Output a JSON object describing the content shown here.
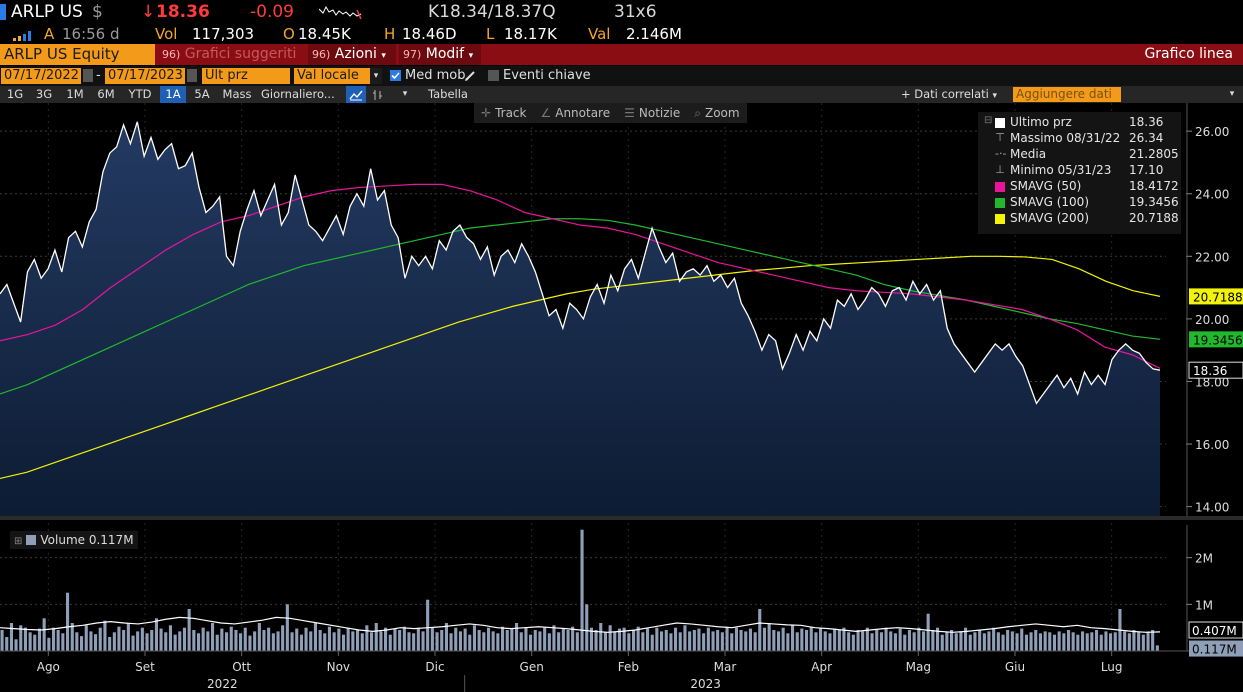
{
  "quote": {
    "ticker": "ARLP US",
    "currency_icon": "$",
    "direction_icon": "↓",
    "price": "18.36",
    "change": "-0.09",
    "bid_ask": "K18.34/18.37Q",
    "size": "31x6",
    "signal_icon": "signal-bars",
    "time_label": "A",
    "time": "16:56 d",
    "vol_label": "Vol",
    "vol": "117,303",
    "open_label": "O",
    "open": "18.45K",
    "high_label": "H",
    "high": "18.46D",
    "low_label": "L",
    "low": "18.17K",
    "val_label": "Val",
    "val": "2.146M"
  },
  "titlebar": {
    "security": "ARLP US Equity",
    "suggested_num": "96)",
    "suggested": "Grafici suggeriti",
    "actions_num": "96)",
    "actions": "Azioni",
    "modify_num": "97)",
    "modify": "Modif",
    "chart_type": "Grafico linea"
  },
  "params": {
    "start_date": "07/17/2022",
    "separator": "-",
    "end_date": "07/17/2023",
    "field": "Ult prz",
    "currency": "Val locale",
    "moving_avg": "Med mob",
    "moving_avg_checked": true,
    "key_events": "Eventi chiave",
    "key_events_checked": false
  },
  "periods": {
    "buttons": [
      "1G",
      "3G",
      "1M",
      "6M",
      "YTD",
      "1A",
      "5A",
      "Mass",
      "Giornaliero"
    ],
    "selected": "1A",
    "table": "Tabella",
    "related": "+ Dati correlati",
    "add_data": "Aggiungere dati"
  },
  "tools": [
    "Track",
    "Annotare",
    "Notizie",
    "Zoom"
  ],
  "legend": [
    {
      "name": "Ultimo prz",
      "value": "18.36",
      "color": "#ffffff",
      "marker": "square"
    },
    {
      "name": "Massimo 08/31/22",
      "value": "26.34",
      "color": "#aaaaaa",
      "marker": "high"
    },
    {
      "name": "Media",
      "value": "21.2805",
      "color": "#aaaaaa",
      "marker": "avg"
    },
    {
      "name": "Minimo 05/31/23",
      "value": "17.10",
      "color": "#aaaaaa",
      "marker": "low"
    },
    {
      "name": "SMAVG (50)",
      "value": "18.4172",
      "color": "#e8149b",
      "marker": "square"
    },
    {
      "name": "SMAVG (100)",
      "value": "19.3456",
      "color": "#22b82e",
      "marker": "square"
    },
    {
      "name": "SMAVG (200)",
      "value": "20.7188",
      "color": "#f2f20a",
      "marker": "square"
    }
  ],
  "volume_legend": "Volume 0.117M",
  "chart_data": {
    "type": "line",
    "price_axis": {
      "ylim": [
        13.7,
        26.9
      ],
      "ticks": [
        "26.00",
        "24.00",
        "22.00",
        "20.00",
        "18.00",
        "16.00",
        "14.00"
      ]
    },
    "volume_axis": {
      "ylim": [
        0,
        2.7
      ],
      "ticks": [
        "2M",
        "1M"
      ]
    },
    "x_labels": [
      "Ago",
      "Set",
      "Ott",
      "Nov",
      "Dic",
      "Gen",
      "Feb",
      "Mar",
      "Apr",
      "Mag",
      "Giu",
      "Lug"
    ],
    "years": [
      "2022",
      "2023"
    ],
    "last_labels": [
      {
        "text": "20.7188",
        "value": 20.7188,
        "color": "#f2f20a"
      },
      {
        "text": "19.3456",
        "value": 19.3456,
        "color": "#22b82e"
      },
      {
        "text": "18.36",
        "value": 18.36,
        "color": "#ffffff"
      }
    ],
    "volume_labels": [
      {
        "text": "0.407M",
        "value": 0.407
      },
      {
        "text": "0.117M",
        "value": 0.117
      }
    ],
    "series": [
      {
        "name": "Ultimo prz",
        "color": "#ffffff",
        "values": [
          20.8,
          21.1,
          20.5,
          19.9,
          21.5,
          21.9,
          21.3,
          21.6,
          22.2,
          21.5,
          22.6,
          22.8,
          22.3,
          23.1,
          23.5,
          24.7,
          25.3,
          25.5,
          26.2,
          25.6,
          26.3,
          25.2,
          25.8,
          25.1,
          25.4,
          25.6,
          24.8,
          24.9,
          25.3,
          24.2,
          23.4,
          23.6,
          23.9,
          22.0,
          21.7,
          22.8,
          23.5,
          24.1,
          23.3,
          23.8,
          24.3,
          23.0,
          23.4,
          24.6,
          23.8,
          23.0,
          22.8,
          22.5,
          22.9,
          23.3,
          22.7,
          23.6,
          24.0,
          23.6,
          24.8,
          23.8,
          24.1,
          23.0,
          22.6,
          21.3,
          22.0,
          21.7,
          22.0,
          21.6,
          22.5,
          22.2,
          22.8,
          23.0,
          22.6,
          22.4,
          21.9,
          22.3,
          21.4,
          22.0,
          22.2,
          21.8,
          22.4,
          22.0,
          21.5,
          20.8,
          20.1,
          20.3,
          19.7,
          20.5,
          20.3,
          20.0,
          20.7,
          21.1,
          20.5,
          21.4,
          20.9,
          21.6,
          21.9,
          21.3,
          22.1,
          22.9,
          22.3,
          21.8,
          22.1,
          21.2,
          21.5,
          21.6,
          21.4,
          21.7,
          21.2,
          21.4,
          21.0,
          21.3,
          20.5,
          20.1,
          19.6,
          19.0,
          19.5,
          19.3,
          18.4,
          18.9,
          19.5,
          19.0,
          19.6,
          19.3,
          20.0,
          19.7,
          20.6,
          20.4,
          20.8,
          20.3,
          20.6,
          21.0,
          20.8,
          20.4,
          20.9,
          21.0,
          20.6,
          21.2,
          20.8,
          21.1,
          20.6,
          20.9,
          19.7,
          19.2,
          18.9,
          18.6,
          18.3,
          18.6,
          18.9,
          19.2,
          19.0,
          19.2,
          18.8,
          18.5,
          17.9,
          17.3,
          17.6,
          17.9,
          18.2,
          17.8,
          18.1,
          17.6,
          18.3,
          17.9,
          18.2,
          17.9,
          18.7,
          19.0,
          19.2,
          19.0,
          18.9,
          18.6,
          18.4,
          18.36
        ]
      },
      {
        "name": "SMAVG (50)",
        "color": "#e8149b",
        "values": [
          19.3,
          19.5,
          19.8,
          20.3,
          21.0,
          21.6,
          22.2,
          22.7,
          23.1,
          23.3,
          23.6,
          23.9,
          24.1,
          24.2,
          24.25,
          24.3,
          24.3,
          24.1,
          23.8,
          23.4,
          23.2,
          23.0,
          22.9,
          22.7,
          22.4,
          22.1,
          21.8,
          21.6,
          21.4,
          21.2,
          21.0,
          20.9,
          20.85,
          20.8,
          20.7,
          20.6,
          20.45,
          20.3,
          20.0,
          19.65,
          19.1,
          18.85,
          18.42
        ]
      },
      {
        "name": "SMAVG (100)",
        "color": "#22b82e",
        "values": [
          17.6,
          17.9,
          18.3,
          18.7,
          19.1,
          19.5,
          19.9,
          20.3,
          20.7,
          21.1,
          21.4,
          21.7,
          21.9,
          22.1,
          22.3,
          22.5,
          22.7,
          22.9,
          23.0,
          23.1,
          23.2,
          23.2,
          23.15,
          23.0,
          22.8,
          22.6,
          22.4,
          22.2,
          22.0,
          21.8,
          21.6,
          21.4,
          21.1,
          20.9,
          20.75,
          20.6,
          20.4,
          20.2,
          20.0,
          19.85,
          19.65,
          19.45,
          19.35
        ]
      },
      {
        "name": "SMAVG (200)",
        "color": "#f2f20a",
        "values": [
          14.9,
          15.1,
          15.4,
          15.7,
          16.0,
          16.3,
          16.6,
          16.9,
          17.2,
          17.5,
          17.8,
          18.1,
          18.4,
          18.7,
          19.0,
          19.3,
          19.6,
          19.9,
          20.15,
          20.4,
          20.6,
          20.8,
          20.95,
          21.05,
          21.15,
          21.25,
          21.35,
          21.45,
          21.55,
          21.62,
          21.7,
          21.75,
          21.8,
          21.85,
          21.9,
          21.95,
          22.0,
          22.0,
          21.98,
          21.9,
          21.6,
          21.2,
          20.9,
          20.72
        ]
      },
      {
        "name": "Volume",
        "color": "#8f9fb8",
        "values": [
          0.45,
          0.3,
          0.6,
          0.25,
          0.55,
          0.5,
          0.4,
          0.35,
          0.48,
          0.7,
          0.28,
          0.5,
          0.45,
          0.38,
          1.25,
          0.6,
          0.4,
          0.32,
          0.55,
          0.42,
          0.36,
          0.5,
          0.65,
          0.3,
          0.4,
          0.52,
          0.45,
          0.6,
          0.33,
          0.42,
          0.5,
          0.38,
          0.45,
          0.7,
          0.48,
          0.4,
          0.55,
          0.35,
          0.42,
          0.5,
          0.9,
          0.45,
          0.38,
          0.5,
          0.42,
          0.6,
          0.35,
          0.48,
          0.4,
          0.52,
          0.45,
          0.38,
          0.5,
          0.33,
          0.42,
          0.6,
          0.45,
          0.5,
          0.38,
          0.42,
          0.55,
          1.0,
          0.4,
          0.48,
          0.35,
          0.5,
          0.42,
          0.6,
          0.45,
          0.38,
          0.52,
          0.4,
          0.48,
          0.35,
          0.5,
          0.42,
          0.45,
          0.38,
          0.55,
          0.4,
          0.6,
          0.42,
          0.5,
          0.35,
          0.48,
          0.45,
          0.52,
          0.4,
          0.38,
          0.5,
          0.42,
          1.1,
          0.5,
          0.4,
          0.45,
          0.6,
          0.38,
          0.5,
          0.42,
          0.48,
          0.35,
          0.55,
          0.45,
          0.4,
          0.5,
          0.42,
          0.38,
          0.52,
          0.45,
          0.48,
          0.6,
          0.4,
          0.5,
          0.35,
          0.45,
          0.42,
          0.5,
          0.38,
          0.55,
          0.4,
          0.48,
          0.45,
          0.52,
          0.4,
          2.6,
          1.0,
          0.5,
          0.45,
          0.6,
          0.4,
          0.55,
          0.42,
          0.48,
          0.5,
          0.38,
          0.45,
          0.52,
          0.4,
          0.48,
          0.35,
          0.5,
          0.42,
          0.45,
          0.38,
          0.5,
          0.4,
          0.55,
          0.42,
          0.45,
          0.48,
          0.38,
          0.5,
          0.42,
          0.45,
          0.4,
          0.52,
          0.38,
          0.5,
          0.45,
          0.42,
          0.48,
          0.4,
          0.9,
          0.5,
          0.6,
          0.45,
          0.42,
          0.5,
          0.38,
          0.55,
          0.4,
          0.48,
          0.45,
          0.52,
          0.4,
          0.5,
          0.42,
          0.38,
          0.48,
          0.45,
          0.5,
          0.4,
          0.35,
          0.45,
          0.42,
          0.5,
          0.38,
          0.45,
          0.4,
          0.5,
          0.42,
          0.38,
          0.48,
          0.35,
          0.45,
          0.4,
          0.5,
          0.42,
          0.8,
          0.45,
          0.5,
          0.35,
          0.4,
          0.45,
          0.38,
          0.42,
          0.5,
          0.35,
          0.4,
          0.45,
          0.38,
          0.42,
          0.5,
          0.4,
          0.35,
          0.45,
          0.42,
          0.38,
          0.48,
          0.35,
          0.4,
          0.45,
          0.38,
          0.42,
          0.4,
          0.35,
          0.42,
          0.38,
          0.45,
          0.4,
          0.35,
          0.42,
          0.38,
          0.4,
          0.45,
          0.35,
          0.42,
          0.38,
          0.4,
          0.9,
          0.42,
          0.38,
          0.45,
          0.4,
          0.35,
          0.42,
          0.45,
          0.12
        ]
      },
      {
        "name": "Volume avg",
        "color": "#ffffff",
        "values": [
          0.5,
          0.48,
          0.46,
          0.45,
          0.48,
          0.52,
          0.55,
          0.6,
          0.63,
          0.6,
          0.58,
          0.62,
          0.68,
          0.72,
          0.7,
          0.65,
          0.6,
          0.58,
          0.62,
          0.66,
          0.72,
          0.7,
          0.65,
          0.6,
          0.55,
          0.5,
          0.45,
          0.42,
          0.45,
          0.5,
          0.48,
          0.5,
          0.52,
          0.55,
          0.58,
          0.55,
          0.5,
          0.48,
          0.5,
          0.52,
          0.5,
          0.48,
          0.45,
          0.42,
          0.4,
          0.42,
          0.45,
          0.5,
          0.55,
          0.6,
          0.58,
          0.55,
          0.52,
          0.5,
          0.55,
          0.6,
          0.58,
          0.56,
          0.55,
          0.5,
          0.48,
          0.45,
          0.42,
          0.45,
          0.48,
          0.5,
          0.48,
          0.45,
          0.42,
          0.4,
          0.42,
          0.45,
          0.48,
          0.52,
          0.55,
          0.58,
          0.55,
          0.52,
          0.55,
          0.5,
          0.48,
          0.45,
          0.42,
          0.4,
          0.41
        ]
      }
    ]
  }
}
